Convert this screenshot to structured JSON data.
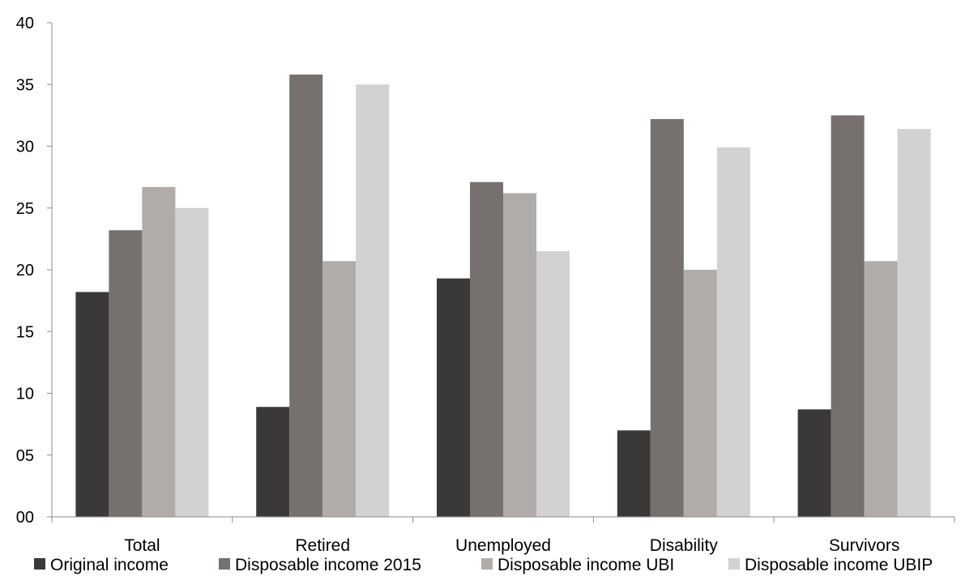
{
  "chart_data": {
    "type": "bar",
    "title": "",
    "xlabel": "",
    "ylabel": "",
    "categories": [
      "Total",
      "Retired",
      "Unemployed",
      "Disability",
      "Survivors"
    ],
    "ylim": [
      0,
      40
    ],
    "yticks": [
      "00",
      "05",
      "10",
      "15",
      "20",
      "25",
      "30",
      "35",
      "40"
    ],
    "grid": false,
    "legend_position": "bottom",
    "series": [
      {
        "name": "Original income",
        "color": "#3b3938",
        "values": [
          18.2,
          8.9,
          19.3,
          7.0,
          8.7
        ]
      },
      {
        "name": "Disposable income 2015",
        "color": "#76716f",
        "values": [
          23.2,
          35.8,
          27.1,
          32.2,
          32.5
        ]
      },
      {
        "name": "Disposable income UBI",
        "color": "#b0acaa",
        "values": [
          26.7,
          20.7,
          26.2,
          20.0,
          20.7
        ]
      },
      {
        "name": "Disposable income UBIP",
        "color": "#d3d1d2",
        "values": [
          25.0,
          35.0,
          21.5,
          29.9,
          31.4
        ]
      }
    ]
  }
}
